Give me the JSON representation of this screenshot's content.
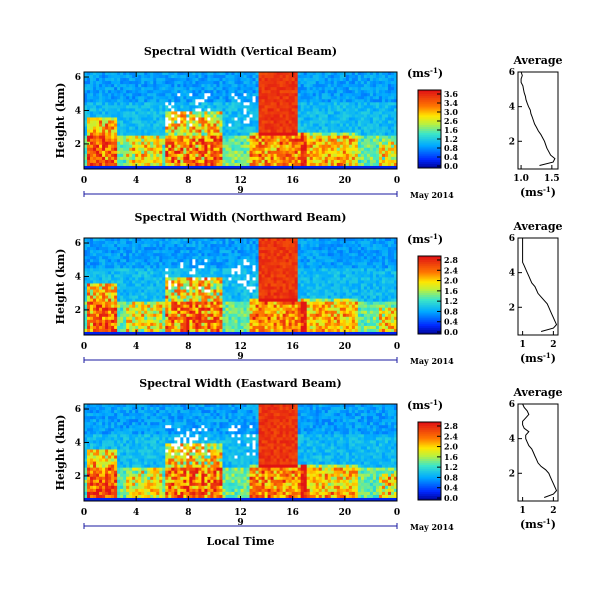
{
  "chart_data": [
    {
      "type": "heatmap",
      "title": "Spectral Width (Vertical Beam)",
      "ylabel": "Height (km)",
      "y_ticks": [
        "6",
        "4",
        "2"
      ],
      "x_ticks": [
        "0",
        "4",
        "8",
        "12",
        "16",
        "20",
        "0"
      ],
      "date_day": "9",
      "date_label": "May 2014",
      "unit_label": "(ms",
      "unit_exp": "-1",
      "unit_close": ")",
      "colorbar_ticks": [
        "3.6",
        "3.4",
        "3.0",
        "2.6",
        "1.6",
        "1.2",
        "0.8",
        "0.4",
        "0.0"
      ],
      "colorbar_range": [
        0,
        3.6
      ],
      "profile": {
        "title": "Average",
        "y_ticks": [
          "6",
          "4",
          "2"
        ],
        "x_ticks": [
          "1.0",
          "1.5"
        ],
        "xlim": [
          0.95,
          1.6
        ],
        "ylim": [
          0.4,
          6.0
        ],
        "xlabel": "(ms",
        "xlabel_exp": "-1",
        "xlabel_close": ")",
        "y": [
          0.6,
          0.8,
          1.0,
          1.2,
          1.4,
          1.6,
          1.8,
          2.0,
          2.2,
          2.4,
          2.6,
          2.8,
          3.0,
          3.2,
          3.4,
          3.6,
          3.8,
          4.0,
          4.2,
          4.4,
          4.6,
          4.8,
          5.0,
          5.2,
          5.4,
          5.6,
          5.8,
          6.0
        ],
        "x": [
          1.3,
          1.52,
          1.55,
          1.48,
          1.45,
          1.42,
          1.4,
          1.38,
          1.35,
          1.32,
          1.28,
          1.25,
          1.22,
          1.2,
          1.18,
          1.16,
          1.15,
          1.12,
          1.1,
          1.08,
          1.07,
          1.05,
          1.04,
          1.03,
          1.0,
          1.0,
          1.02,
          1.0
        ]
      }
    },
    {
      "type": "heatmap",
      "title": "Spectral Width (Northward Beam)",
      "ylabel": "Height (km)",
      "y_ticks": [
        "6",
        "4",
        "2"
      ],
      "x_ticks": [
        "0",
        "4",
        "8",
        "12",
        "16",
        "20",
        "0"
      ],
      "date_day": "9",
      "date_label": "May 2014",
      "unit_label": "(ms",
      "unit_exp": "-1",
      "unit_close": ")",
      "colorbar_ticks": [
        "2.8",
        "2.4",
        "2.0",
        "1.6",
        "1.2",
        "0.8",
        "0.4",
        "0.0"
      ],
      "colorbar_range": [
        0,
        2.8
      ],
      "profile": {
        "title": "Average",
        "y_ticks": [
          "6",
          "4",
          "2"
        ],
        "x_ticks": [
          "1",
          "2"
        ],
        "xlim": [
          0.85,
          2.15
        ],
        "ylim": [
          0.4,
          6.0
        ],
        "xlabel": "(ms",
        "xlabel_exp": "-1",
        "xlabel_close": ")",
        "y": [
          0.6,
          0.8,
          1.0,
          1.2,
          1.4,
          1.6,
          1.8,
          2.0,
          2.2,
          2.4,
          2.6,
          2.8,
          3.0,
          3.2,
          3.4,
          3.6,
          3.8,
          4.0,
          4.2,
          4.4,
          4.6,
          4.8,
          5.0,
          5.2,
          5.4,
          5.6,
          5.8,
          6.0
        ],
        "x": [
          1.6,
          2.0,
          2.1,
          2.05,
          2.0,
          1.95,
          1.9,
          1.85,
          1.8,
          1.7,
          1.6,
          1.5,
          1.45,
          1.4,
          1.3,
          1.25,
          1.2,
          1.15,
          1.1,
          1.05,
          1.0,
          1.0,
          1.0,
          1.0,
          1.0,
          1.0,
          1.0,
          1.0
        ]
      }
    },
    {
      "type": "heatmap",
      "title": "Spectral Width (Eastward Beam)",
      "ylabel": "Height (km)",
      "y_ticks": [
        "6",
        "4",
        "2"
      ],
      "x_ticks": [
        "0",
        "4",
        "8",
        "12",
        "16",
        "20",
        "0"
      ],
      "date_day": "9",
      "date_label": "May 2014",
      "xlabel": "Local Time",
      "unit_label": "(ms",
      "unit_exp": "-1",
      "unit_close": ")",
      "colorbar_ticks": [
        "2.8",
        "2.4",
        "2.0",
        "1.6",
        "1.2",
        "0.8",
        "0.4",
        "0.0"
      ],
      "colorbar_range": [
        0,
        2.8
      ],
      "profile": {
        "title": "Average",
        "y_ticks": [
          "6",
          "4",
          "2"
        ],
        "x_ticks": [
          "1",
          "2"
        ],
        "xlim": [
          0.85,
          2.15
        ],
        "ylim": [
          0.4,
          6.0
        ],
        "xlabel": "(ms",
        "xlabel_exp": "-1",
        "xlabel_close": ")",
        "y": [
          0.6,
          0.8,
          1.0,
          1.2,
          1.4,
          1.6,
          1.8,
          2.0,
          2.2,
          2.4,
          2.6,
          2.8,
          3.0,
          3.2,
          3.4,
          3.6,
          3.8,
          4.0,
          4.2,
          4.4,
          4.6,
          4.8,
          5.0,
          5.2,
          5.4,
          5.6,
          5.8,
          6.0
        ],
        "x": [
          1.7,
          2.0,
          2.1,
          2.05,
          2.0,
          1.95,
          1.9,
          1.85,
          1.75,
          1.6,
          1.5,
          1.45,
          1.4,
          1.35,
          1.3,
          1.2,
          1.15,
          1.1,
          1.1,
          1.2,
          1.05,
          1.0,
          1.0,
          1.1,
          1.2,
          1.15,
          1.05,
          1.0
        ]
      }
    }
  ]
}
